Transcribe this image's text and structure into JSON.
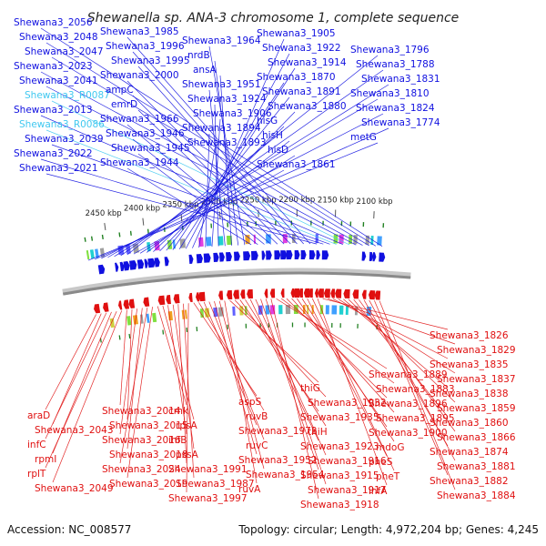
{
  "title": "Shewanella sp. ANA-3 chromosome 1, complete sequence",
  "footer": {
    "accession": "Accession: NC_008577",
    "topology": "Topology: circular; Length: 4,972,204 bp; Genes: 4,245"
  },
  "colors": {
    "forward": "#1010e0",
    "reverse": "#e01010",
    "rna": "#40c8f0",
    "backbone": "#8a8a8a",
    "marker": "#208020"
  },
  "ticks": [
    "2100 kbp",
    "2150 kbp",
    "2200 kbp",
    "2250 kbp",
    "2300 kbp",
    "2350 kbp",
    "2400 kbp",
    "2450 kbp"
  ],
  "forward_labels": [
    "Shewana3_2056",
    "Shewana3_2048",
    "Shewana3_2047",
    "Shewana3_2023",
    "Shewana3_2041",
    "Shewana3_R0087",
    "Shewana3_2013",
    "Shewana3_R0086",
    "Shewana3_2039",
    "Shewana3_2022",
    "Shewana3_2021",
    "Shewana3_1985",
    "Shewana3_1996",
    "Shewana3_1995",
    "Shewana3_2000",
    "ampC",
    "emrD",
    "Shewana3_1966",
    "Shewana3_1946",
    "Shewana3_1945",
    "Shewana3_1944",
    "Shewana3_1964",
    "nrdB",
    "ansA",
    "Shewana3_1951",
    "Shewana3_1924",
    "Shewana3_1906",
    "Shewana3_1894",
    "Shewana3_1893",
    "Shewana3_1905",
    "Shewana3_1922",
    "Shewana3_1914",
    "Shewana3_1870",
    "Shewana3_1891",
    "Shewana3_1880",
    "hisG",
    "hisH",
    "hisD",
    "Shewana3_1861",
    "Shewana3_1796",
    "Shewana3_1788",
    "Shewana3_1831",
    "Shewana3_1810",
    "Shewana3_1824",
    "Shewana3_1774",
    "metG"
  ],
  "reverse_labels": [
    "araD",
    "Shewana3_2043",
    "infC",
    "rpmI",
    "rplT",
    "Shewana3_2049",
    "Shewana3_2014",
    "Shewana3_2015",
    "Shewana3_2016",
    "Shewana3_2018",
    "Shewana3_2024",
    "Shewana3_2019",
    "cmk",
    "rpsA",
    "ihfB",
    "pssA",
    "Shewana3_1991",
    "Shewana3_1987",
    "Shewana3_1997",
    "aspS",
    "ruvB",
    "Shewana3_1972",
    "ruvC",
    "Shewana3_1952",
    "Shewana3_1954",
    "ruvA",
    "thiG",
    "Shewana3_1932",
    "Shewana3_1935",
    "thiH",
    "Shewana3_1923",
    "Shewana3_1916",
    "Shewana3_1915",
    "Shewana3_1917",
    "Shewana3_1918",
    "Shewana3_1889",
    "Shewana3_1883",
    "Shewana3_1896",
    "Shewana3_1895",
    "Shewana3_1900",
    "mdoG",
    "pheS",
    "pheT",
    "ihfA",
    "Shewana3_1826",
    "Shewana3_1829",
    "Shewana3_1835",
    "Shewana3_1837",
    "Shewana3_1838",
    "Shewana3_1859",
    "Shewana3_1860",
    "Shewana3_1866",
    "Shewana3_1874",
    "Shewana3_1881",
    "Shewana3_1882",
    "Shewana3_1884"
  ]
}
